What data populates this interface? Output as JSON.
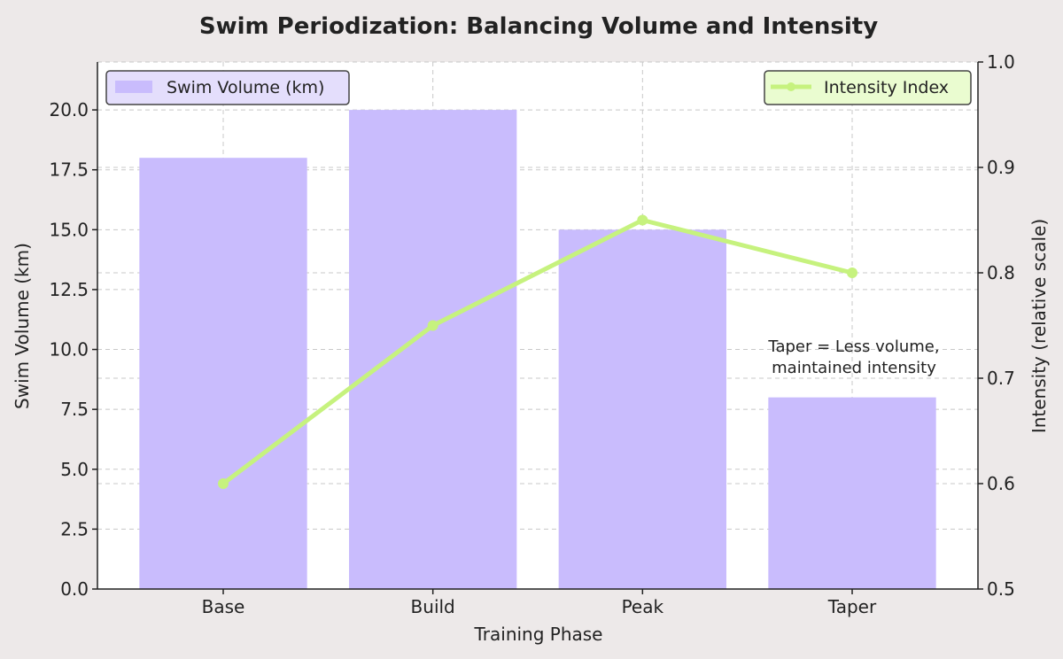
{
  "chart_data": {
    "type": "bar",
    "title": "Swim Periodization: Balancing Volume and Intensity",
    "xlabel": "Training Phase",
    "ylabel": "Swim Volume (km)",
    "ylabel_right": "Intensity (relative scale)",
    "categories": [
      "Base",
      "Build",
      "Peak",
      "Taper"
    ],
    "ylim": [
      0,
      22
    ],
    "ylim_right": [
      0.5,
      1.0
    ],
    "yticks": [
      "0.0",
      "2.5",
      "5.0",
      "7.5",
      "10.0",
      "12.5",
      "15.0",
      "17.5",
      "20.0"
    ],
    "yticks_right": [
      "0.5",
      "0.6",
      "0.7",
      "0.8",
      "0.9",
      "1.0"
    ],
    "grid": true,
    "series": [
      {
        "name": "Swim Volume (km)",
        "type": "bar",
        "axis": "left",
        "values": [
          18,
          20,
          15,
          8
        ],
        "color": "#c9bcfd"
      },
      {
        "name": "Intensity Index",
        "type": "line",
        "axis": "right",
        "values": [
          0.6,
          0.75,
          0.85,
          0.8
        ],
        "color": "#c6f27e"
      }
    ],
    "legends": [
      {
        "series": "Swim Volume (km)",
        "placement": "top-left"
      },
      {
        "series": "Intensity Index",
        "placement": "top-right"
      }
    ],
    "annotation": {
      "lines": [
        "Taper = Less volume,",
        "maintained intensity"
      ],
      "category": "Taper"
    }
  }
}
